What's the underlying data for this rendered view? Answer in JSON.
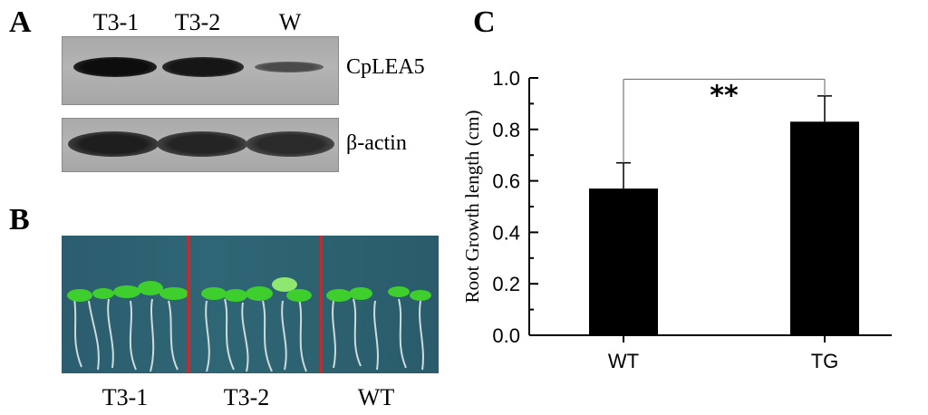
{
  "panel_a": {
    "letter": "A",
    "lanes": [
      "T3-1",
      "T3-2",
      "W"
    ],
    "blots": [
      "CpLEA5",
      "β-actin"
    ]
  },
  "panel_b": {
    "letter": "B",
    "lanes": [
      "T3-1",
      "T3-2",
      "WT"
    ]
  },
  "panel_c": {
    "letter": "C"
  },
  "colors": {
    "bar": "#000000",
    "divider": "#e02020",
    "leaf": "#3ecf2e",
    "photo_bg": "#2f6675"
  },
  "chart_data": {
    "type": "bar",
    "categories": [
      "WT",
      "TG"
    ],
    "values": [
      0.57,
      0.83
    ],
    "error": [
      0.1,
      0.1
    ],
    "ylabel": "Root Growth length (cm)",
    "xlabel": "",
    "ylim": [
      0,
      1.0
    ],
    "yticks": [
      "0.0",
      "0.2",
      "0.4",
      "0.6",
      "0.8",
      "1.0"
    ],
    "significance": "**",
    "grid": false
  }
}
